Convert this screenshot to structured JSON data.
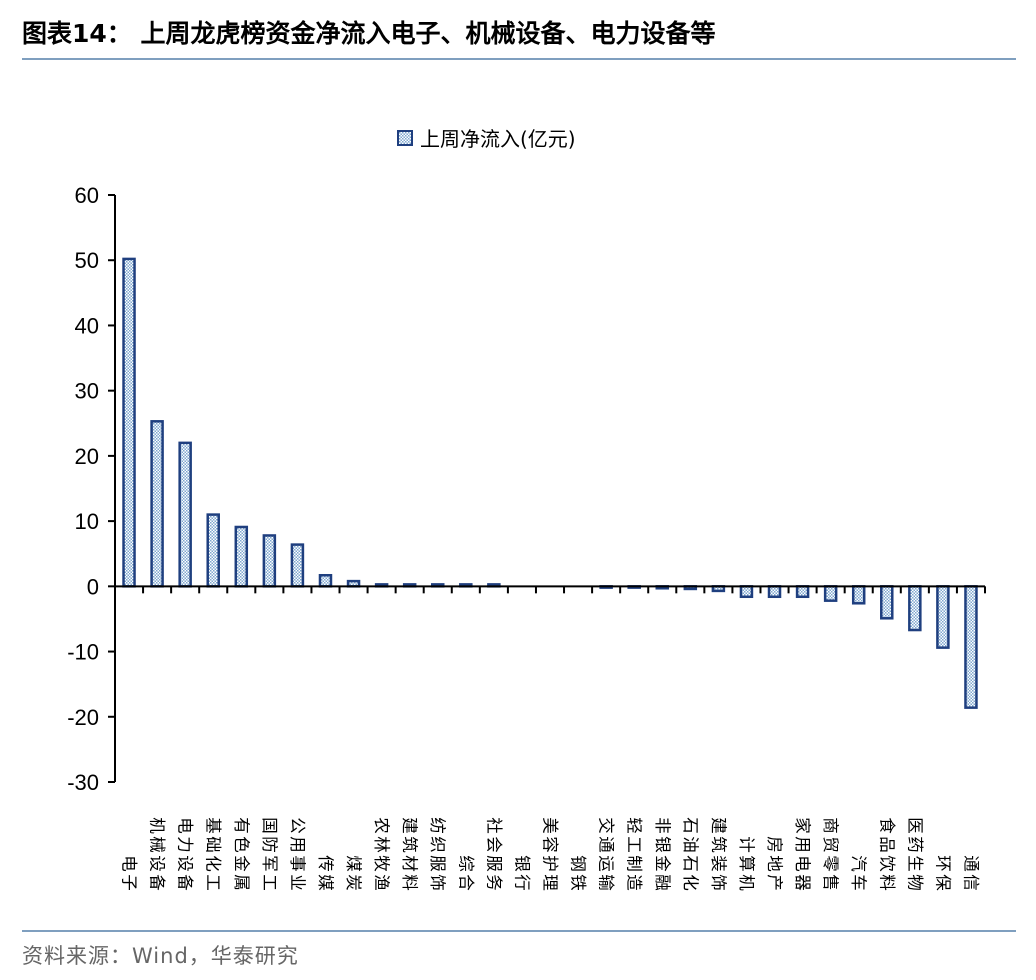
{
  "figure": {
    "title": "图表14：  上周龙虎榜资金净流入电子、机械设备、电力设备等",
    "source": "资料来源：Wind，华泰研究"
  },
  "colors": {
    "bar_outline": "#1f3f7f",
    "bar_fill": "#ffffff",
    "bar_pattern": "#7fa7cf",
    "axis": "#000000",
    "rule": "#7f9fbf"
  },
  "chart_data": {
    "type": "bar",
    "title": "",
    "xlabel": "",
    "ylabel": "",
    "ylim": [
      -30,
      60
    ],
    "yticks": [
      60,
      50,
      40,
      30,
      20,
      10,
      0,
      -10,
      -20,
      -30
    ],
    "grid": false,
    "legend_position": "top-center",
    "categories": [
      "电子",
      "机械设备",
      "电力设备",
      "基础化工",
      "有色金属",
      "国防军工",
      "公用事业",
      "传媒",
      "煤炭",
      "农林牧渔",
      "建筑材料",
      "纺织服饰",
      "综合",
      "社会服务",
      "银行",
      "美容护理",
      "钢铁",
      "交通运输",
      "轻工制造",
      "非银金融",
      "石油石化",
      "建筑装饰",
      "计算机",
      "房地产",
      "家用电器",
      "商贸零售",
      "汽车",
      "食品饮料",
      "医药生物",
      "环保",
      "通信"
    ],
    "series": [
      {
        "name": "上周净流入(亿元)",
        "values": [
          50.2,
          25.3,
          22.0,
          11.0,
          9.1,
          7.8,
          6.4,
          1.7,
          0.8,
          0.3,
          0.3,
          0.3,
          0.3,
          0.3,
          0.0,
          0.0,
          0.0,
          -0.2,
          -0.2,
          -0.3,
          -0.4,
          -0.7,
          -1.6,
          -1.6,
          -1.6,
          -2.2,
          -2.6,
          -4.9,
          -6.7,
          -9.4,
          -18.6
        ]
      }
    ]
  }
}
